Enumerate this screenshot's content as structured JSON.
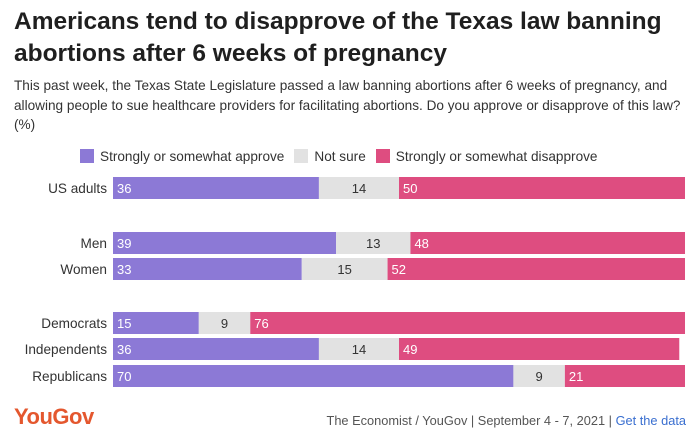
{
  "header": {
    "title": "Americans tend to disapprove of the Texas law banning abortions after 6 weeks of pregnancy",
    "subtitle": "This past week, the Texas State Legislature passed a law banning abortions after 6 weeks of pregnancy, and allowing people to sue healthcare providers for facilitating abortions. Do you approve or disapprove of this law? (%)"
  },
  "colors": {
    "approve": "#8c79d6",
    "not_sure": "#e2e2e2",
    "disapprove": "#de4d80"
  },
  "footer": {
    "logo": "YouGov",
    "source": "The Economist / YouGov | September 4 - 7, 2021 |",
    "link": "Get the data"
  },
  "chart_data": {
    "type": "bar",
    "orientation": "horizontal",
    "stacked": true,
    "categories": [
      "US adults",
      "Men",
      "Women",
      "Democrats",
      "Independents",
      "Republicans"
    ],
    "series": [
      {
        "name": "Strongly or somewhat approve",
        "values": [
          36,
          39,
          33,
          15,
          36,
          70
        ]
      },
      {
        "name": "Not sure",
        "values": [
          14,
          13,
          15,
          9,
          14,
          9
        ]
      },
      {
        "name": "Strongly or somewhat disapprove",
        "values": [
          50,
          48,
          52,
          76,
          49,
          21
        ]
      }
    ],
    "xlim": [
      0,
      100
    ],
    "legend": "top",
    "grid": false
  }
}
